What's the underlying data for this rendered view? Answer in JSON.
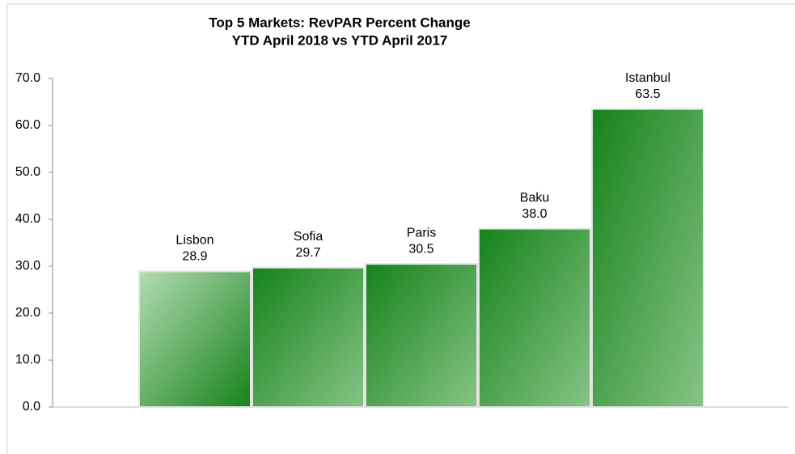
{
  "chart_data": {
    "type": "bar",
    "title": "Top 5 Markets: RevPAR Percent Change",
    "subtitle": "YTD April 2018 vs YTD April 2017",
    "categories": [
      "Lisbon",
      "Sofia",
      "Paris",
      "Baku",
      "Istanbul"
    ],
    "values": [
      28.9,
      29.7,
      30.5,
      38.0,
      63.5
    ],
    "value_labels": [
      "28.9",
      "29.7",
      "30.5",
      "38.0",
      "63.5"
    ],
    "color": "#16821a",
    "ylim": [
      0,
      70
    ],
    "yticks": [
      {
        "value": 0,
        "label": "0.0"
      },
      {
        "value": 10,
        "label": "10.0"
      },
      {
        "value": 20,
        "label": "20.0"
      },
      {
        "value": 30,
        "label": "30.0"
      },
      {
        "value": 40,
        "label": "40.0"
      },
      {
        "value": 50,
        "label": "50.0"
      },
      {
        "value": 60,
        "label": "60.0"
      },
      {
        "value": 70,
        "label": "70.0"
      }
    ],
    "grid": false
  }
}
